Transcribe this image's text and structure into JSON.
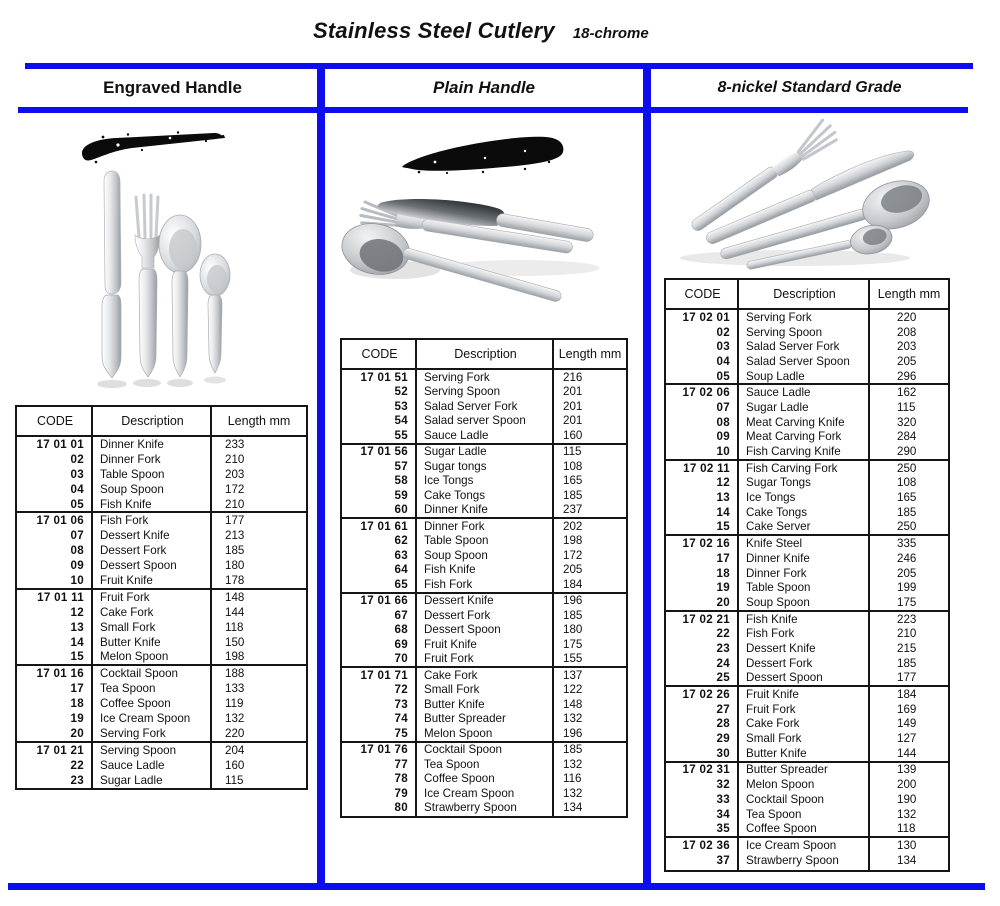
{
  "title": "Stainless Steel Cutlery",
  "subtitle": "18-chrome",
  "accent_color": "#0d0dee",
  "panels": [
    {
      "header": "Engraved Handle",
      "image": "engraved-handle-cutlery-photo",
      "table": {
        "headers": [
          "CODE",
          "Description",
          "Length mm"
        ],
        "groups": [
          [
            [
              "17 01 01",
              "Dinner Knife",
              "233"
            ],
            [
              "02",
              "Dinner Fork",
              "210"
            ],
            [
              "03",
              "Table Spoon",
              "203"
            ],
            [
              "04",
              "Soup Spoon",
              "172"
            ],
            [
              "05",
              "Fish Knife",
              "210"
            ]
          ],
          [
            [
              "17 01 06",
              "Fish Fork",
              "177"
            ],
            [
              "07",
              "Dessert Knife",
              "213"
            ],
            [
              "08",
              "Dessert Fork",
              "185"
            ],
            [
              "09",
              "Dessert Spoon",
              "180"
            ],
            [
              "10",
              "Fruit Knife",
              "178"
            ]
          ],
          [
            [
              "17 01 11",
              "Fruit Fork",
              "148"
            ],
            [
              "12",
              "Cake Fork",
              "144"
            ],
            [
              "13",
              "Small Fork",
              "118"
            ],
            [
              "14",
              "Butter Knife",
              "150"
            ],
            [
              "15",
              "Melon Spoon",
              "198"
            ]
          ],
          [
            [
              "17 01 16",
              "Cocktail Spoon",
              "188"
            ],
            [
              "17",
              "Tea Spoon",
              "133"
            ],
            [
              "18",
              "Coffee Spoon",
              "119"
            ],
            [
              "19",
              "Ice Cream Spoon",
              "132"
            ],
            [
              "20",
              "Serving Fork",
              "220"
            ]
          ],
          [
            [
              "17 01 21",
              "Serving Spoon",
              "204"
            ],
            [
              "22",
              "Sauce Ladle",
              "160"
            ],
            [
              "23",
              "Sugar Ladle",
              "115"
            ]
          ]
        ]
      }
    },
    {
      "header": "Plain Handle",
      "image": "plain-handle-cutlery-photo",
      "table": {
        "headers": [
          "CODE",
          "Description",
          "Length mm"
        ],
        "groups": [
          [
            [
              "17 01 51",
              "Serving Fork",
              "216"
            ],
            [
              "52",
              "Serving Spoon",
              "201"
            ],
            [
              "53",
              "Salad Server Fork",
              "201"
            ],
            [
              "54",
              "Salad server Spoon",
              "201"
            ],
            [
              "55",
              "Sauce Ladle",
              "160"
            ]
          ],
          [
            [
              "17 01 56",
              "Sugar Ladle",
              "115"
            ],
            [
              "57",
              "Sugar tongs",
              "108"
            ],
            [
              "58",
              "Ice Tongs",
              "165"
            ],
            [
              "59",
              "Cake Tongs",
              "185"
            ],
            [
              "60",
              "Dinner Knife",
              "237"
            ]
          ],
          [
            [
              "17 01 61",
              "Dinner Fork",
              "202"
            ],
            [
              "62",
              "Table Spoon",
              "198"
            ],
            [
              "63",
              "Soup Spoon",
              "172"
            ],
            [
              "64",
              "Fish Knife",
              "205"
            ],
            [
              "65",
              "Fish Fork",
              "184"
            ]
          ],
          [
            [
              "17 01 66",
              "Dessert Knife",
              "196"
            ],
            [
              "67",
              "Dessert Fork",
              "185"
            ],
            [
              "68",
              "Dessert Spoon",
              "180"
            ],
            [
              "69",
              "Fruit Knife",
              "175"
            ],
            [
              "70",
              "Fruit Fork",
              "155"
            ]
          ],
          [
            [
              "17 01 71",
              "Cake Fork",
              "137"
            ],
            [
              "72",
              "Small Fork",
              "122"
            ],
            [
              "73",
              "Butter Knife",
              "148"
            ],
            [
              "74",
              "Butter Spreader",
              "132"
            ],
            [
              "75",
              "Melon Spoon",
              "196"
            ]
          ],
          [
            [
              "17 01 76",
              "Cocktail Spoon",
              "185"
            ],
            [
              "77",
              "Tea Spoon",
              "132"
            ],
            [
              "78",
              "Coffee Spoon",
              "116"
            ],
            [
              "79",
              "Ice Cream Spoon",
              "132"
            ],
            [
              "80",
              "Strawberry Spoon",
              "134"
            ]
          ]
        ]
      }
    },
    {
      "header": "8-nickel Standard Grade",
      "image": "standard-grade-cutlery-photo",
      "table": {
        "headers": [
          "CODE",
          "Description",
          "Length mm"
        ],
        "groups": [
          [
            [
              "17 02 01",
              "Serving Fork",
              "220"
            ],
            [
              "02",
              "Serving Spoon",
              "208"
            ],
            [
              "03",
              "Salad Server Fork",
              "203"
            ],
            [
              "04",
              "Salad Server Spoon",
              "205"
            ],
            [
              "05",
              "Soup Ladle",
              "296"
            ]
          ],
          [
            [
              "17 02 06",
              "Sauce Ladle",
              "162"
            ],
            [
              "07",
              "Sugar Ladle",
              "115"
            ],
            [
              "08",
              "Meat Carving Knife",
              "320"
            ],
            [
              "09",
              "Meat Carving Fork",
              "284"
            ],
            [
              "10",
              "Fish Carving Knife",
              "290"
            ]
          ],
          [
            [
              "17 02 11",
              "Fish Carving Fork",
              "250"
            ],
            [
              "12",
              "Sugar Tongs",
              "108"
            ],
            [
              "13",
              "Ice Tongs",
              "165"
            ],
            [
              "14",
              "Cake Tongs",
              "185"
            ],
            [
              "15",
              "Cake Server",
              "250"
            ]
          ],
          [
            [
              "17 02 16",
              "Knife Steel",
              "335"
            ],
            [
              "17",
              "Dinner Knife",
              "246"
            ],
            [
              "18",
              "Dinner Fork",
              "205"
            ],
            [
              "19",
              "Table Spoon",
              "199"
            ],
            [
              "20",
              "Soup Spoon",
              "175"
            ]
          ],
          [
            [
              "17 02 21",
              "Fish Knife",
              "223"
            ],
            [
              "22",
              "Fish Fork",
              "210"
            ],
            [
              "23",
              "Dessert Knife",
              "215"
            ],
            [
              "24",
              "Dessert Fork",
              "185"
            ],
            [
              "25",
              "Dessert Spoon",
              "177"
            ]
          ],
          [
            [
              "17 02 26",
              "Fruit Knife",
              "184"
            ],
            [
              "27",
              "Fruit Fork",
              "169"
            ],
            [
              "28",
              "Cake Fork",
              "149"
            ],
            [
              "29",
              "Small Fork",
              "127"
            ],
            [
              "30",
              "Butter Knife",
              "144"
            ]
          ],
          [
            [
              "17 02 31",
              "Butter Spreader",
              "139"
            ],
            [
              "32",
              "Melon Spoon",
              "200"
            ],
            [
              "33",
              "Cocktail Spoon",
              "190"
            ],
            [
              "34",
              "Tea Spoon",
              "132"
            ],
            [
              "35",
              "Coffee Spoon",
              "118"
            ]
          ],
          [
            [
              "17 02 36",
              "Ice Cream Spoon",
              "130"
            ],
            [
              "37",
              "Strawberry Spoon",
              "134"
            ]
          ]
        ]
      }
    }
  ]
}
